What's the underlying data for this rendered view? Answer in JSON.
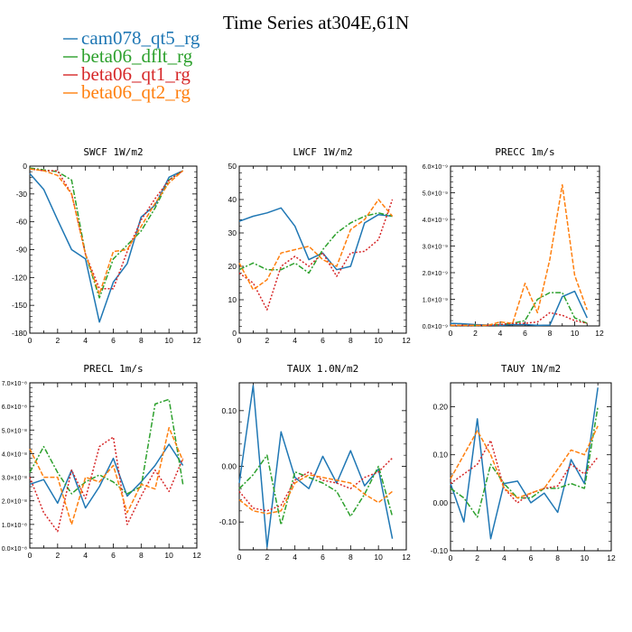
{
  "figure": {
    "title": "Time Series at304E,61N"
  },
  "legend": [
    {
      "name": "cam078_qt5_rg",
      "color": "#1f77b4",
      "dash": "solid"
    },
    {
      "name": "beta06_dflt_rg",
      "color": "#2ca02c",
      "dash": "solid"
    },
    {
      "name": "beta06_qt1_rg",
      "color": "#d62728",
      "dash": "solid"
    },
    {
      "name": "beta06_qt2_rg",
      "color": "#ff7f0e",
      "dash": "solid"
    }
  ],
  "chart_data": [
    {
      "type": "line",
      "title": "SWCF",
      "units": "1W/m2",
      "x": [
        0,
        1,
        2,
        3,
        4,
        5,
        6,
        7,
        8,
        9,
        10,
        11
      ],
      "xlim": [
        0,
        12
      ],
      "xticks": [
        "0",
        "2",
        "4",
        "6",
        "8",
        "10",
        "12"
      ],
      "ylim": [
        -180,
        0
      ],
      "yticks": [
        "0",
        "-30",
        "-60",
        "-90",
        "-120",
        "-150",
        "-180"
      ],
      "series": [
        {
          "name": "cam078_qt5_rg",
          "color": "#1f77b4",
          "dash": "solid",
          "values": [
            -8,
            -25,
            -58,
            -90,
            -100,
            -168,
            -125,
            -105,
            -55,
            -42,
            -12,
            -5
          ]
        },
        {
          "name": "beta06_dflt_rg",
          "color": "#2ca02c",
          "dash": "dashdot",
          "values": [
            -2,
            -4,
            -6,
            -15,
            -95,
            -142,
            -100,
            -85,
            -70,
            -45,
            -15,
            -5
          ]
        },
        {
          "name": "beta06_qt1_rg",
          "color": "#d62728",
          "dash": "dotted",
          "values": [
            -3,
            -5,
            -5,
            -30,
            -95,
            -132,
            -132,
            -92,
            -58,
            -35,
            -15,
            -5
          ]
        },
        {
          "name": "beta06_qt2_rg",
          "color": "#ff7f0e",
          "dash": "dashed",
          "values": [
            -3,
            -5,
            -10,
            -30,
            -95,
            -138,
            -92,
            -90,
            -65,
            -40,
            -18,
            -5
          ]
        }
      ]
    },
    {
      "type": "line",
      "title": "LWCF",
      "units": "1W/m2",
      "x": [
        0,
        1,
        2,
        3,
        4,
        5,
        6,
        7,
        8,
        9,
        10,
        11
      ],
      "xlim": [
        0,
        12
      ],
      "xticks": [
        "0",
        "2",
        "4",
        "6",
        "8",
        "10",
        "12"
      ],
      "ylim": [
        0,
        50
      ],
      "yticks": [
        "0",
        "10",
        "20",
        "30",
        "40",
        "50"
      ],
      "series": [
        {
          "name": "cam078_qt5_rg",
          "color": "#1f77b4",
          "dash": "solid",
          "values": [
            33.5,
            35,
            36,
            37.5,
            32,
            22,
            24,
            19,
            20,
            33,
            35.5,
            35
          ]
        },
        {
          "name": "beta06_dflt_rg",
          "color": "#2ca02c",
          "dash": "dashdot",
          "values": [
            19,
            21,
            19,
            19,
            21,
            18,
            25,
            30,
            33,
            35,
            36,
            35
          ]
        },
        {
          "name": "beta06_qt1_rg",
          "color": "#d62728",
          "dash": "dotted",
          "values": [
            18,
            15,
            7,
            20,
            23,
            20,
            24,
            17,
            24,
            24.5,
            28,
            40
          ]
        },
        {
          "name": "beta06_qt2_rg",
          "color": "#ff7f0e",
          "dash": "dashed",
          "values": [
            21,
            13,
            16,
            24,
            25,
            26,
            22,
            20,
            31,
            34,
            40,
            35
          ]
        }
      ]
    },
    {
      "type": "line",
      "title": "PRECC",
      "units": "1m/s",
      "x": [
        0,
        1,
        2,
        3,
        4,
        5,
        6,
        7,
        8,
        9,
        10,
        11
      ],
      "xlim": [
        0,
        12
      ],
      "xticks": [
        "0",
        "2",
        "4",
        "6",
        "8",
        "10",
        "12"
      ],
      "ylim": [
        0,
        6
      ],
      "yticks": [
        "0.0×10⁻⁹",
        "1.0×10⁻⁹",
        "2.0×10⁻⁹",
        "3.0×10⁻⁹",
        "4.0×10⁻⁹",
        "5.0×10⁻⁹",
        "6.0×10⁻⁹"
      ],
      "series": [
        {
          "name": "cam078_qt5_rg",
          "color": "#1f77b4",
          "dash": "solid",
          "values": [
            0.1,
            0.08,
            0.05,
            0.03,
            0.02,
            0.05,
            0.05,
            0.02,
            0.03,
            1.1,
            1.3,
            0.3
          ]
        },
        {
          "name": "beta06_dflt_rg",
          "color": "#2ca02c",
          "dash": "dashdot",
          "values": [
            0.02,
            0.02,
            0.02,
            0.02,
            0.05,
            0.1,
            0.2,
            1.0,
            1.25,
            1.25,
            0.3,
            0.1
          ]
        },
        {
          "name": "beta06_qt1_rg",
          "color": "#d62728",
          "dash": "dotted",
          "values": [
            0.02,
            0.02,
            0.02,
            0.02,
            0.05,
            0.1,
            0.1,
            0.15,
            0.5,
            0.4,
            0.2,
            0.1
          ]
        },
        {
          "name": "beta06_qt2_rg",
          "color": "#ff7f0e",
          "dash": "dashed",
          "values": [
            0.02,
            0.02,
            0.02,
            0.02,
            0.15,
            0.1,
            1.6,
            0.5,
            2.5,
            5.3,
            1.9,
            0.6
          ]
        }
      ]
    },
    {
      "type": "line",
      "title": "PRECL",
      "units": "1m/s",
      "x": [
        0,
        1,
        2,
        3,
        4,
        5,
        6,
        7,
        8,
        9,
        10,
        11
      ],
      "xlim": [
        0,
        12
      ],
      "xticks": [
        "0",
        "2",
        "4",
        "6",
        "8",
        "10",
        "12"
      ],
      "ylim": [
        0,
        7
      ],
      "yticks": [
        "0.0×10⁻⁸",
        "1.0×10⁻⁸",
        "2.0×10⁻⁸",
        "3.0×10⁻⁸",
        "4.0×10⁻⁸",
        "5.0×10⁻⁸",
        "6.0×10⁻⁸",
        "7.0×10⁻⁸"
      ],
      "series": [
        {
          "name": "cam078_qt5_rg",
          "color": "#1f77b4",
          "dash": "solid",
          "values": [
            2.7,
            2.9,
            1.9,
            3.3,
            1.7,
            2.6,
            3.8,
            2.2,
            2.8,
            3.5,
            4.4,
            3.5
          ]
        },
        {
          "name": "beta06_dflt_rg",
          "color": "#2ca02c",
          "dash": "dashdot",
          "values": [
            3.2,
            4.3,
            3.2,
            2.3,
            2.8,
            3.1,
            2.8,
            2.3,
            2.6,
            6.1,
            6.3,
            2.7
          ]
        },
        {
          "name": "beta06_qt1_rg",
          "color": "#d62728",
          "dash": "dotted",
          "values": [
            3.0,
            1.5,
            0.7,
            3.3,
            2.1,
            4.3,
            4.7,
            1.0,
            2.2,
            3.3,
            2.4,
            3.8
          ]
        },
        {
          "name": "beta06_qt2_rg",
          "color": "#ff7f0e",
          "dash": "dashed",
          "values": [
            4.2,
            3.0,
            3.0,
            1.0,
            3.0,
            2.8,
            3.5,
            1.5,
            2.7,
            2.5,
            5.1,
            3.7
          ]
        }
      ]
    },
    {
      "type": "line",
      "title": "TAUX",
      "units": "1.0N/m2",
      "x": [
        0,
        1,
        2,
        3,
        4,
        5,
        6,
        7,
        8,
        9,
        10,
        11
      ],
      "xlim": [
        0,
        12
      ],
      "xticks": [
        "0",
        "2",
        "4",
        "6",
        "8",
        "10",
        "12"
      ],
      "ylim": [
        -0.15,
        0.15
      ],
      "yticks": [
        "0.10",
        "0.00",
        "-0.10"
      ],
      "ytick_values": [
        0.1,
        0.0,
        -0.1
      ],
      "series": [
        {
          "name": "cam078_qt5_rg",
          "color": "#1f77b4",
          "dash": "solid",
          "values": [
            -0.03,
            0.145,
            -0.145,
            0.062,
            -0.02,
            -0.04,
            0.018,
            -0.03,
            0.028,
            -0.035,
            -0.005,
            -0.13
          ]
        },
        {
          "name": "beta06_dflt_rg",
          "color": "#2ca02c",
          "dash": "dashdot",
          "values": [
            -0.04,
            -0.015,
            0.02,
            -0.105,
            -0.01,
            -0.02,
            -0.03,
            -0.045,
            -0.09,
            -0.05,
            0.0,
            -0.09
          ]
        },
        {
          "name": "beta06_qt1_rg",
          "color": "#d62728",
          "dash": "dotted",
          "values": [
            -0.045,
            -0.075,
            -0.08,
            -0.07,
            -0.025,
            -0.01,
            -0.025,
            -0.03,
            -0.04,
            -0.02,
            -0.01,
            0.015
          ]
        },
        {
          "name": "beta06_qt2_rg",
          "color": "#ff7f0e",
          "dash": "dashed",
          "values": [
            -0.06,
            -0.08,
            -0.085,
            -0.08,
            -0.03,
            -0.015,
            -0.02,
            -0.025,
            -0.03,
            -0.05,
            -0.065,
            -0.045
          ]
        }
      ]
    },
    {
      "type": "line",
      "title": "TAUY",
      "units": "1N/m2",
      "x": [
        0,
        1,
        2,
        3,
        4,
        5,
        6,
        7,
        8,
        9,
        10,
        11
      ],
      "xlim": [
        0,
        12
      ],
      "xticks": [
        "0",
        "2",
        "4",
        "6",
        "8",
        "10",
        "12"
      ],
      "ylim": [
        -0.1,
        0.25
      ],
      "yticks": [
        "0.20",
        "0.10",
        "0.00",
        "-0.10"
      ],
      "ytick_values": [
        0.2,
        0.1,
        0.0,
        -0.1
      ],
      "series": [
        {
          "name": "cam078_qt5_rg",
          "color": "#1f77b4",
          "dash": "solid",
          "values": [
            0.04,
            -0.04,
            0.175,
            -0.075,
            0.04,
            0.045,
            0.0,
            0.02,
            -0.02,
            0.09,
            0.04,
            0.24
          ]
        },
        {
          "name": "beta06_dflt_rg",
          "color": "#2ca02c",
          "dash": "dashdot",
          "values": [
            0.03,
            0.01,
            -0.03,
            0.08,
            0.04,
            0.01,
            0.01,
            0.03,
            0.03,
            0.04,
            0.03,
            0.2
          ]
        },
        {
          "name": "beta06_qt1_rg",
          "color": "#d62728",
          "dash": "dotted",
          "values": [
            0.04,
            0.06,
            0.08,
            0.13,
            0.03,
            0.0,
            0.02,
            0.03,
            0.035,
            0.08,
            0.06,
            0.095
          ]
        },
        {
          "name": "beta06_qt2_rg",
          "color": "#ff7f0e",
          "dash": "dashed",
          "values": [
            0.05,
            0.1,
            0.15,
            0.1,
            0.03,
            0.01,
            0.02,
            0.03,
            0.07,
            0.11,
            0.1,
            0.16
          ]
        }
      ]
    }
  ]
}
